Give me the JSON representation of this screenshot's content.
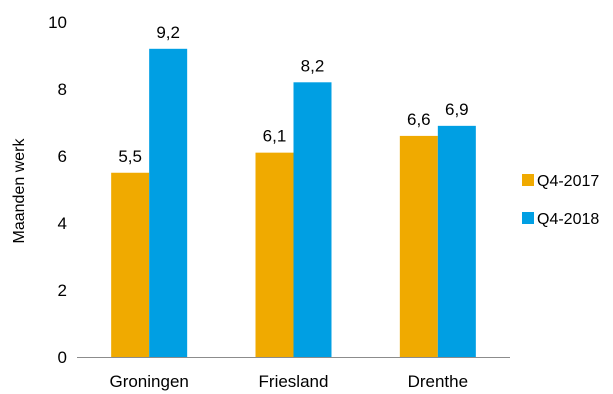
{
  "chart_data": {
    "type": "bar",
    "title": "",
    "xlabel": "",
    "ylabel": "Maanden werk",
    "ylim": [
      0,
      10
    ],
    "yticks": [
      "0",
      "2",
      "4",
      "6",
      "8",
      "10"
    ],
    "ytick_values": [
      0,
      2,
      4,
      6,
      8,
      10
    ],
    "categories": [
      "Groningen",
      "Friesland",
      "Drenthe"
    ],
    "series": [
      {
        "name": "Q4-2017",
        "values": [
          5.5,
          6.1,
          6.6
        ],
        "labels": [
          "5,5",
          "6,1",
          "6,6"
        ],
        "color": "#F0AA00"
      },
      {
        "name": "Q4-2018",
        "values": [
          9.2,
          8.2,
          6.9
        ],
        "labels": [
          "9,2",
          "8,2",
          "6,9"
        ],
        "color": "#009FE3"
      }
    ],
    "grid": false,
    "legend_position": "right"
  }
}
